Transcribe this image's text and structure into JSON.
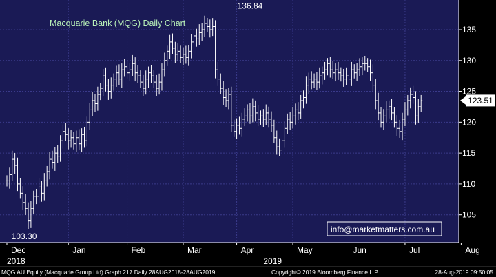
{
  "chart_data": {
    "type": "ohlc",
    "title": "Macquarie Bank (MQG) Daily Chart",
    "ylim": [
      100.5,
      139.8
    ],
    "y_ticks": [
      105,
      110,
      115,
      120,
      125,
      130,
      135
    ],
    "x_range_days": [
      0,
      165
    ],
    "x_month_labels": [
      {
        "label": "Dec",
        "day": 0
      },
      {
        "label": "Jan",
        "day": 23
      },
      {
        "label": "Feb",
        "day": 45
      },
      {
        "label": "Mar",
        "day": 66
      },
      {
        "label": "Apr",
        "day": 86
      },
      {
        "label": "May",
        "day": 107
      },
      {
        "label": "Jun",
        "day": 128
      },
      {
        "label": "Jul",
        "day": 149
      },
      {
        "label": "Aug",
        "day": 170
      }
    ],
    "year_labels": [
      {
        "label": "2018",
        "day": 0
      },
      {
        "label": "2019",
        "day": 96
      }
    ],
    "last_price": "123.51",
    "annotations": [
      {
        "text": "136.84",
        "day": 91,
        "value": 136.84,
        "position": "above"
      },
      {
        "text": "103.30",
        "day": 8,
        "value": 103.3,
        "position": "below"
      }
    ],
    "series": [
      {
        "type": "close_path",
        "points": [
          [
            0,
            110.5
          ],
          [
            1,
            111.5
          ],
          [
            2,
            114.0
          ],
          [
            3,
            113.0
          ],
          [
            4,
            110.0
          ],
          [
            5,
            108.5
          ],
          [
            6,
            107.0
          ],
          [
            7,
            106.0
          ],
          [
            8,
            104.0
          ],
          [
            9,
            106.0
          ],
          [
            10,
            108.0
          ],
          [
            11,
            108.0
          ],
          [
            12,
            109.5
          ],
          [
            13,
            108.5
          ],
          [
            14,
            110.5
          ],
          [
            15,
            112.0
          ],
          [
            16,
            114.0
          ],
          [
            17,
            113.5
          ],
          [
            18,
            115.0
          ],
          [
            19,
            114.5
          ],
          [
            20,
            117.0
          ],
          [
            21,
            118.5
          ],
          [
            22,
            118.0
          ],
          [
            23,
            117.0
          ],
          [
            24,
            117.5
          ],
          [
            25,
            116.5
          ],
          [
            26,
            117.5
          ],
          [
            27,
            116.5
          ],
          [
            28,
            118.0
          ],
          [
            29,
            117.0
          ],
          [
            30,
            120.0
          ],
          [
            31,
            122.0
          ],
          [
            32,
            123.5
          ],
          [
            33,
            123.0
          ],
          [
            34,
            124.5
          ],
          [
            35,
            125.5
          ],
          [
            36,
            127.5
          ],
          [
            37,
            126.0
          ],
          [
            38,
            125.0
          ],
          [
            39,
            126.0
          ],
          [
            40,
            127.0
          ],
          [
            41,
            128.0
          ],
          [
            42,
            127.0
          ],
          [
            43,
            128.5
          ],
          [
            44,
            129.0
          ],
          [
            45,
            128.0
          ],
          [
            46,
            128.5
          ],
          [
            47,
            129.5
          ],
          [
            48,
            128.0
          ],
          [
            49,
            127.5
          ],
          [
            50,
            126.5
          ],
          [
            51,
            125.5
          ],
          [
            52,
            127.0
          ],
          [
            53,
            128.0
          ],
          [
            54,
            127.5
          ],
          [
            55,
            126.5
          ],
          [
            56,
            125.5
          ],
          [
            57,
            126.5
          ],
          [
            58,
            128.5
          ],
          [
            59,
            130.0
          ],
          [
            60,
            131.5
          ],
          [
            61,
            133.0
          ],
          [
            62,
            132.0
          ],
          [
            63,
            131.0
          ],
          [
            64,
            131.5
          ],
          [
            65,
            130.5
          ],
          [
            66,
            131.0
          ],
          [
            67,
            130.5
          ],
          [
            68,
            131.5
          ],
          [
            69,
            133.0
          ],
          [
            70,
            134.0
          ],
          [
            71,
            133.5
          ],
          [
            72,
            134.5
          ],
          [
            73,
            135.0
          ],
          [
            74,
            136.0
          ],
          [
            75,
            135.5
          ],
          [
            76,
            135.0
          ],
          [
            77,
            135.5
          ],
          [
            78,
            128.5
          ],
          [
            79,
            127.0
          ],
          [
            80,
            125.5
          ],
          [
            81,
            124.0
          ],
          [
            82,
            123.5
          ],
          [
            83,
            124.5
          ],
          [
            84,
            119.5
          ],
          [
            85,
            118.5
          ],
          [
            86,
            119.5
          ],
          [
            87,
            119.0
          ],
          [
            88,
            120.5
          ],
          [
            89,
            121.0
          ],
          [
            90,
            122.0
          ],
          [
            91,
            121.0
          ],
          [
            92,
            122.5
          ],
          [
            93,
            121.5
          ],
          [
            94,
            120.5
          ],
          [
            95,
            121.0
          ],
          [
            96,
            120.5
          ],
          [
            97,
            121.5
          ],
          [
            98,
            120.5
          ],
          [
            99,
            119.5
          ],
          [
            100,
            117.5
          ],
          [
            101,
            116.0
          ],
          [
            102,
            115.5
          ],
          [
            103,
            117.0
          ],
          [
            104,
            119.0
          ],
          [
            105,
            120.5
          ],
          [
            106,
            120.0
          ],
          [
            107,
            121.0
          ],
          [
            108,
            122.0
          ],
          [
            109,
            121.5
          ],
          [
            110,
            123.5
          ],
          [
            111,
            124.0
          ],
          [
            112,
            126.0
          ],
          [
            113,
            127.0
          ],
          [
            114,
            126.5
          ],
          [
            115,
            127.0
          ],
          [
            116,
            126.5
          ],
          [
            117,
            127.5
          ],
          [
            118,
            128.0
          ],
          [
            119,
            128.5
          ],
          [
            120,
            129.5
          ],
          [
            121,
            128.5
          ],
          [
            122,
            128.0
          ],
          [
            123,
            128.5
          ],
          [
            124,
            128.0
          ],
          [
            125,
            127.5
          ],
          [
            126,
            127.0
          ],
          [
            127,
            127.5
          ],
          [
            128,
            127.0
          ],
          [
            129,
            128.5
          ],
          [
            130,
            128.0
          ],
          [
            131,
            128.5
          ],
          [
            132,
            129.0
          ],
          [
            133,
            129.5
          ],
          [
            134,
            129.5
          ],
          [
            135,
            129.0
          ],
          [
            136,
            128.0
          ],
          [
            137,
            126.0
          ],
          [
            138,
            123.5
          ],
          [
            139,
            121.5
          ],
          [
            140,
            120.0
          ],
          [
            141,
            121.0
          ],
          [
            142,
            122.0
          ],
          [
            143,
            122.5
          ],
          [
            144,
            121.5
          ],
          [
            145,
            120.0
          ],
          [
            146,
            119.0
          ],
          [
            147,
            118.5
          ],
          [
            148,
            120.5
          ],
          [
            149,
            122.0
          ],
          [
            150,
            123.5
          ],
          [
            151,
            124.5
          ],
          [
            152,
            124.0
          ],
          [
            153,
            121.0
          ],
          [
            154,
            122.5
          ],
          [
            155,
            123.5
          ]
        ]
      }
    ]
  },
  "watermark_email": "info@marketmatters.com.au",
  "footer": {
    "left": "MQG AU Equity (Macquarie Group Ltd) Graph 217  Daily 28AUG2018-28AUG2019",
    "center": "Copyright© 2019 Bloomberg Finance L.P.",
    "right": "28-Aug-2019 09:50:05"
  },
  "colors": {
    "plot_bg": "#1a1a55",
    "grid": "#3a3a8a",
    "frame": "#ffffff",
    "bar": "#ffffff",
    "title": "#b8f0b8",
    "email": "#ffffff",
    "email_border": "#ffffff",
    "price_box_bg": "#ffffff",
    "price_box_text": "#000000"
  }
}
